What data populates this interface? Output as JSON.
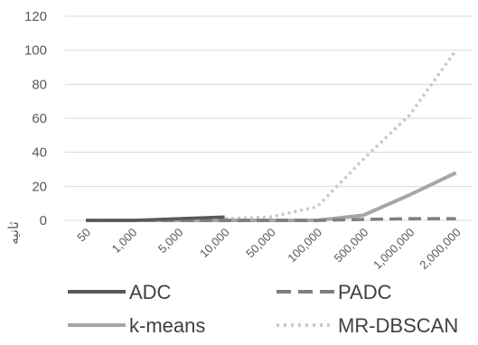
{
  "chart_data": {
    "type": "line",
    "title": "",
    "xlabel": "",
    "ylabel": "ثانیه",
    "ylim": [
      0,
      120
    ],
    "yticks": [
      0,
      20,
      40,
      60,
      80,
      100,
      120
    ],
    "grid": true,
    "legend_position": "bottom",
    "categories": [
      "50",
      "1,000",
      "5,000",
      "10,000",
      "50,000",
      "100,000",
      "500,000",
      "1,000,000",
      "2,000,000"
    ],
    "series": [
      {
        "name": "ADC",
        "color": "#595959",
        "style": "solid",
        "values": [
          0,
          0,
          1,
          2,
          null,
          null,
          null,
          null,
          null
        ]
      },
      {
        "name": "PADC",
        "color": "#7f7f7f",
        "style": "dashed",
        "values": [
          0,
          0,
          0,
          0,
          0,
          0,
          0.5,
          1,
          1
        ]
      },
      {
        "name": "k-means",
        "color": "#a6a6a6",
        "style": "solid",
        "values": [
          0,
          0,
          0,
          0,
          0,
          0,
          3,
          15,
          28
        ]
      },
      {
        "name": "MR-DBSCAN",
        "color": "#c9c9c9",
        "style": "dotted",
        "values": [
          0,
          0,
          0,
          1,
          2,
          8,
          36,
          62,
          100
        ]
      }
    ]
  }
}
